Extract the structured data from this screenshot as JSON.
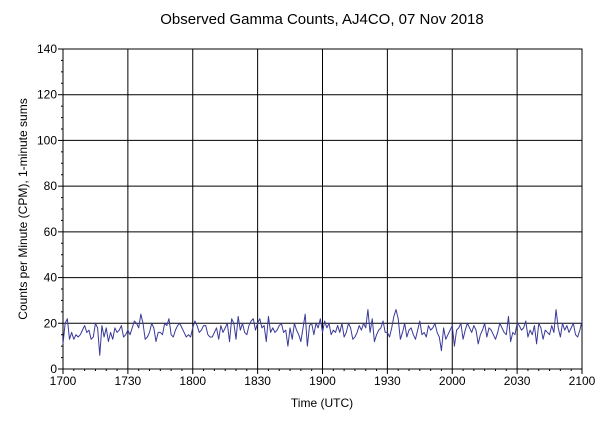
{
  "chart_data": {
    "type": "line",
    "title": "Observed Gamma Counts, AJ4CO, 07 Nov 2018",
    "xlabel": "Time (UTC)",
    "ylabel": "Counts per Minute (CPM), 1-minute sums",
    "x_ticks": [
      "1700",
      "1730",
      "1800",
      "1830",
      "1900",
      "1930",
      "2000",
      "2030",
      "2100"
    ],
    "y_ticks": [
      0,
      20,
      40,
      60,
      80,
      100,
      120,
      140
    ],
    "xlim_minutes_after_1700": [
      0,
      240
    ],
    "ylim": [
      0,
      140
    ],
    "grid": true,
    "series": [
      {
        "color": "#3a3a9a",
        "x_start": "17:00",
        "interval_minutes": 1,
        "values": [
          11,
          20,
          22,
          13,
          16,
          13,
          15,
          14,
          15,
          17,
          19,
          16,
          17,
          13,
          14,
          20,
          18,
          6,
          19,
          14,
          18,
          12,
          16,
          13,
          18,
          16,
          17,
          19,
          14,
          15,
          17,
          15,
          18,
          21,
          20,
          18,
          24,
          20,
          13,
          14,
          16,
          20,
          18,
          12,
          16,
          16,
          15,
          20,
          19,
          22,
          15,
          14,
          17,
          19,
          20,
          18,
          16,
          14,
          15,
          14,
          18,
          21,
          19,
          16,
          17,
          19,
          19,
          15,
          14,
          14,
          16,
          18,
          13,
          19,
          16,
          18,
          20,
          12,
          22,
          20,
          13,
          23,
          17,
          20,
          16,
          15,
          19,
          21,
          22,
          17,
          20,
          22,
          18,
          19,
          12,
          23,
          16,
          18,
          16,
          17,
          19,
          20,
          16,
          17,
          10,
          18,
          13,
          20,
          17,
          15,
          12,
          18,
          24,
          10,
          19,
          20,
          15,
          20,
          18,
          22,
          16,
          21,
          18,
          20,
          15,
          17,
          16,
          19,
          16,
          20,
          14,
          16,
          20,
          18,
          13,
          14,
          16,
          19,
          17,
          20,
          18,
          26,
          16,
          22,
          12,
          15,
          17,
          18,
          21,
          16,
          16,
          14,
          18,
          23,
          26,
          22,
          13,
          16,
          20,
          14,
          17,
          18,
          15,
          13,
          17,
          21,
          15,
          16,
          14,
          19,
          17,
          18,
          20,
          16,
          14,
          8,
          18,
          13,
          15,
          17,
          19,
          10,
          17,
          18,
          20,
          13,
          17,
          20,
          18,
          16,
          19,
          17,
          11,
          15,
          17,
          20,
          14,
          18,
          17,
          15,
          13,
          16,
          20,
          18,
          16,
          15,
          23,
          12,
          16,
          15,
          20,
          19,
          17,
          18,
          21,
          14,
          17,
          15,
          19,
          11,
          20,
          18,
          13,
          17,
          16,
          15,
          19,
          16,
          26,
          18,
          14,
          20,
          17,
          19,
          16,
          18,
          20,
          15,
          14,
          17,
          21
        ]
      }
    ]
  }
}
